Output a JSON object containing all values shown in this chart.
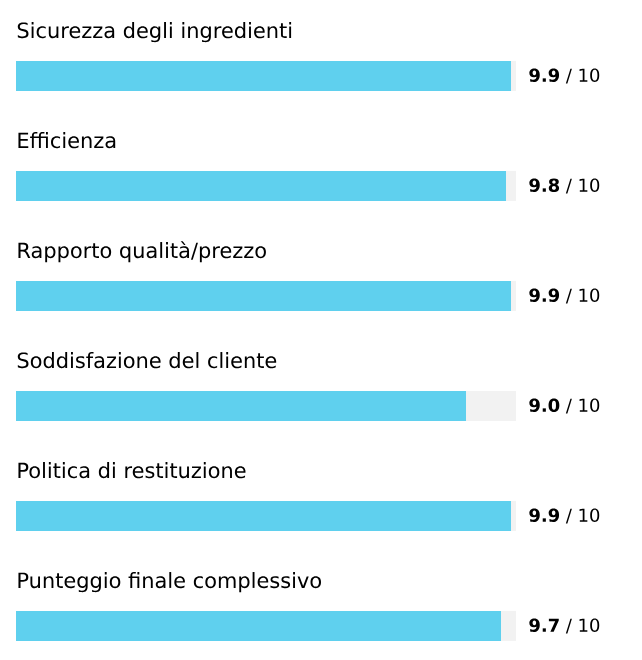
{
  "chart_data": {
    "type": "bar",
    "orientation": "horizontal",
    "stacked": true,
    "categories": [
      "Sicurezza degli ingredienti",
      "Efficienza",
      "Rapporto qualità/prezzo",
      "Soddisfazione del cliente",
      "Politica di restituzione",
      "Punteggio finale complessivo"
    ],
    "series": [
      {
        "color": "#5fd0ee",
        "values": [
          9.9,
          9.8,
          9.9,
          9.0,
          9.9,
          9.7
        ],
        "value_labels": [
          "**9.9** / 10",
          "**9.8** / 10",
          "**9.9** / 10",
          "**9.0** / 10",
          "**9.9** / 10",
          "**9.7** / 10"
        ]
      },
      {
        "color": "#f2f2f2",
        "values": [
          0.1,
          0.2,
          0.1,
          1.0,
          0.1,
          0.3
        ]
      }
    ],
    "xlim": [
      0,
      10
    ],
    "tick_labels": false
  }
}
